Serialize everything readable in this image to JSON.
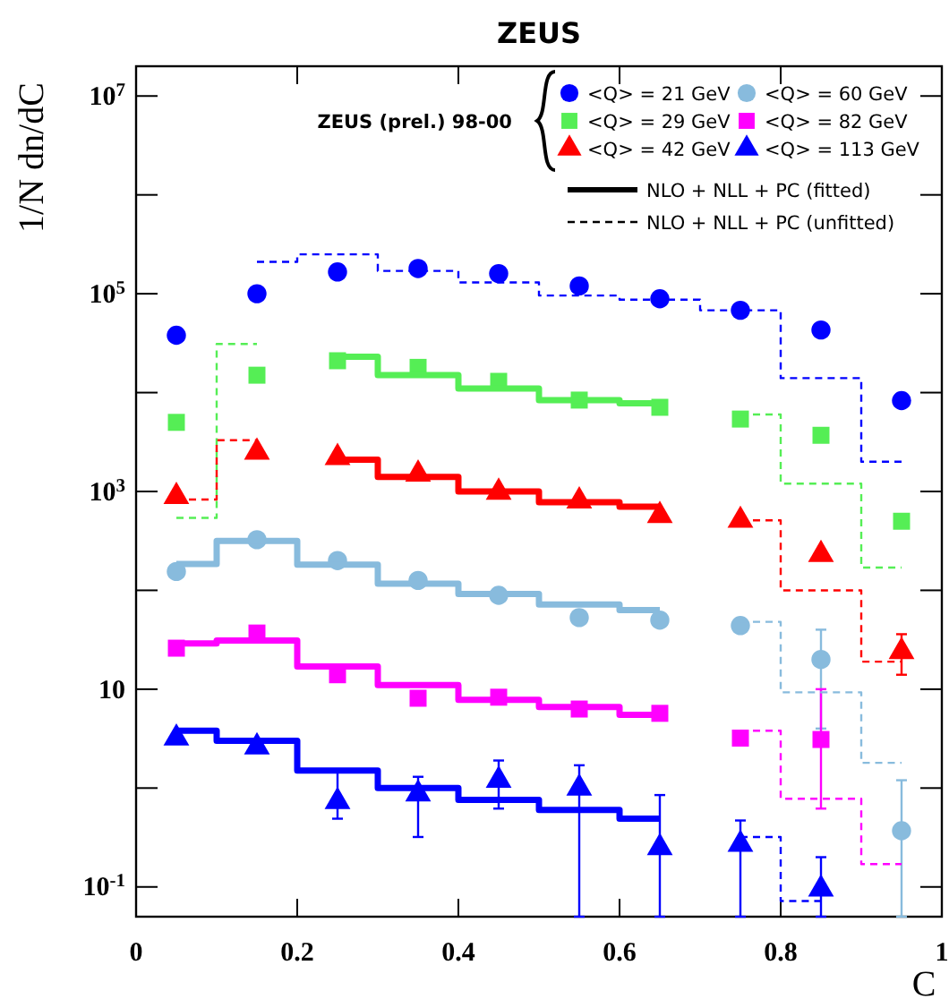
{
  "chart_data": {
    "type": "scatter",
    "title": "ZEUS",
    "xlabel": "C",
    "ylabel": "1/N dn/dC",
    "legend_title": "ZEUS (prel.) 98-00",
    "legend": "top right",
    "log": "y",
    "grid": false,
    "x": [
      0.05,
      0.15,
      0.25,
      0.35,
      0.45,
      0.55,
      0.65,
      0.75,
      0.85,
      0.95
    ],
    "xlim": [
      0,
      1
    ],
    "xticks": [
      0,
      0.2,
      0.4,
      0.6,
      0.8,
      1
    ],
    "ylim": [
      0.05,
      20000000
    ],
    "yticks": [
      {
        "value": 0.1,
        "label": "10$^{-1}$"
      },
      {
        "value": 1,
        "label": null
      },
      10,
      {
        "value": 100,
        "label": null
      },
      {
        "value": 1000,
        "label": "10$^{3}$"
      },
      {
        "value": 10000,
        "label": null
      },
      {
        "value": 100000,
        "label": "10$^{5}$"
      },
      {
        "value": 1000000,
        "label": null
      },
      {
        "value": 10000000,
        "label": "10$^{7}$"
      }
    ],
    "series": [
      {
        "name": "<Q> = 21 GeV",
        "type": "scatter",
        "marker": "circle",
        "color": "#0000ff",
        "values": [
          38000,
          100000,
          166000,
          180000,
          160000,
          120000,
          89000,
          68000,
          43000,
          8300
        ]
      },
      {
        "name": "<Q> = 29 GeV",
        "type": "scatter",
        "marker": "square",
        "color": "#55ee55",
        "values": [
          5000,
          15000,
          21000,
          18000,
          13000,
          8400,
          7100,
          5400,
          3700,
          500
        ]
      },
      {
        "name": "<Q> = 42 GeV",
        "type": "scatter",
        "marker": "triangle",
        "color": "#ff0000",
        "values": [
          890,
          2500,
          2200,
          1500,
          980,
          800,
          570,
          510,
          230,
          24
        ],
        "errors": [
          null,
          null,
          null,
          null,
          null,
          null,
          null,
          null,
          null,
          [
            14,
            36
          ]
        ]
      },
      {
        "name": "<Q> = 60 GeV",
        "type": "scatter",
        "marker": "circle",
        "color": "#88bbdd",
        "values": [
          155,
          325,
          200,
          126,
          89,
          53,
          50,
          44,
          20,
          0.37
        ],
        "errors": [
          null,
          null,
          null,
          null,
          null,
          null,
          null,
          null,
          [
            4,
            40
          ],
          [
            0.05,
            1.2
          ]
        ]
      },
      {
        "name": "<Q> = 82 GeV",
        "type": "scatter",
        "marker": "square",
        "color": "#ff00ff",
        "values": [
          26,
          37,
          14,
          8.1,
          8.3,
          6.3,
          5.7,
          3.2,
          3.1,
          null
        ],
        "errors": [
          null,
          null,
          null,
          null,
          null,
          null,
          null,
          null,
          [
            0.62,
            10
          ],
          null
        ]
      },
      {
        "name": "<Q> = 113 GeV",
        "type": "scatter",
        "marker": "triangle",
        "color": "#0000ff",
        "values": [
          3.2,
          2.6,
          0.73,
          0.87,
          1.2,
          1.0,
          0.25,
          0.27,
          0.095,
          null
        ],
        "errors": [
          null,
          null,
          [
            0.49,
            1.45
          ],
          [
            0.32,
            1.3
          ],
          [
            0.62,
            1.9
          ],
          [
            0.05,
            1.7
          ],
          [
            0.05,
            0.85
          ],
          [
            0.05,
            0.47
          ],
          [
            0.05,
            0.2
          ],
          null
        ]
      },
      {
        "name": "NLO + NLL + PC (fitted)",
        "type": "line",
        "line_style": "solid",
        "color": "#000000",
        "values": [
          null,
          null,
          null,
          null,
          null,
          null,
          null,
          null,
          null,
          null
        ]
      },
      {
        "name": "NLO + NLL + PC (unfitted)",
        "type": "line",
        "line_style": "dashed",
        "color": "#000000",
        "values": [
          null,
          null,
          null,
          null,
          null,
          null,
          null,
          null,
          null,
          null
        ]
      },
      {
        "type": "step",
        "line_style": "dashed",
        "color": "#0000ff",
        "values": [
          null,
          210000,
          250000,
          170000,
          130000,
          96000,
          87000,
          68000,
          14000,
          2000
        ]
      },
      {
        "type": "step",
        "line_style": "dashed",
        "color": "#55ee55",
        "values": [
          540,
          31000,
          null,
          null,
          null,
          null,
          null,
          6000,
          1200,
          170
        ]
      },
      {
        "type": "step",
        "line_style": "solid",
        "color": "#55ee55",
        "values": [
          null,
          null,
          23000,
          15000,
          11000,
          8400,
          7800,
          null,
          null,
          null
        ]
      },
      {
        "type": "step",
        "line_style": "dashed",
        "color": "#ff0000",
        "values": [
          830,
          3300,
          null,
          null,
          null,
          null,
          null,
          510,
          100,
          19
        ]
      },
      {
        "type": "step",
        "line_style": "solid",
        "color": "#ff0000",
        "values": [
          null,
          null,
          2100,
          1400,
          1000,
          780,
          700,
          null,
          null,
          null
        ]
      },
      {
        "type": "step",
        "line_style": "solid",
        "color": "#88bbdd",
        "values": [
          185,
          316,
          182,
          117,
          92,
          72,
          63,
          null,
          null,
          null
        ]
      },
      {
        "type": "step",
        "line_style": "dashed",
        "color": "#88bbdd",
        "values": [
          null,
          null,
          null,
          null,
          null,
          null,
          null,
          48,
          9.3,
          1.8
        ]
      },
      {
        "type": "step",
        "line_style": "solid",
        "color": "#ff00ff",
        "values": [
          29,
          31,
          17,
          11,
          7.8,
          6.6,
          5.5,
          null,
          null,
          null
        ]
      },
      {
        "type": "step",
        "line_style": "dashed",
        "color": "#ff00ff",
        "values": [
          null,
          null,
          null,
          null,
          null,
          null,
          null,
          3.8,
          0.78,
          0.17
        ]
      },
      {
        "type": "step",
        "line_style": "solid",
        "color": "#0000ff",
        "values": [
          3.8,
          3.0,
          1.5,
          1.0,
          0.76,
          0.6,
          0.49,
          null,
          null,
          null
        ]
      },
      {
        "type": "step",
        "line_style": "dashed",
        "color": "#0000ff",
        "values": [
          null,
          null,
          null,
          null,
          null,
          null,
          null,
          0.32,
          0.072,
          null
        ]
      }
    ]
  }
}
